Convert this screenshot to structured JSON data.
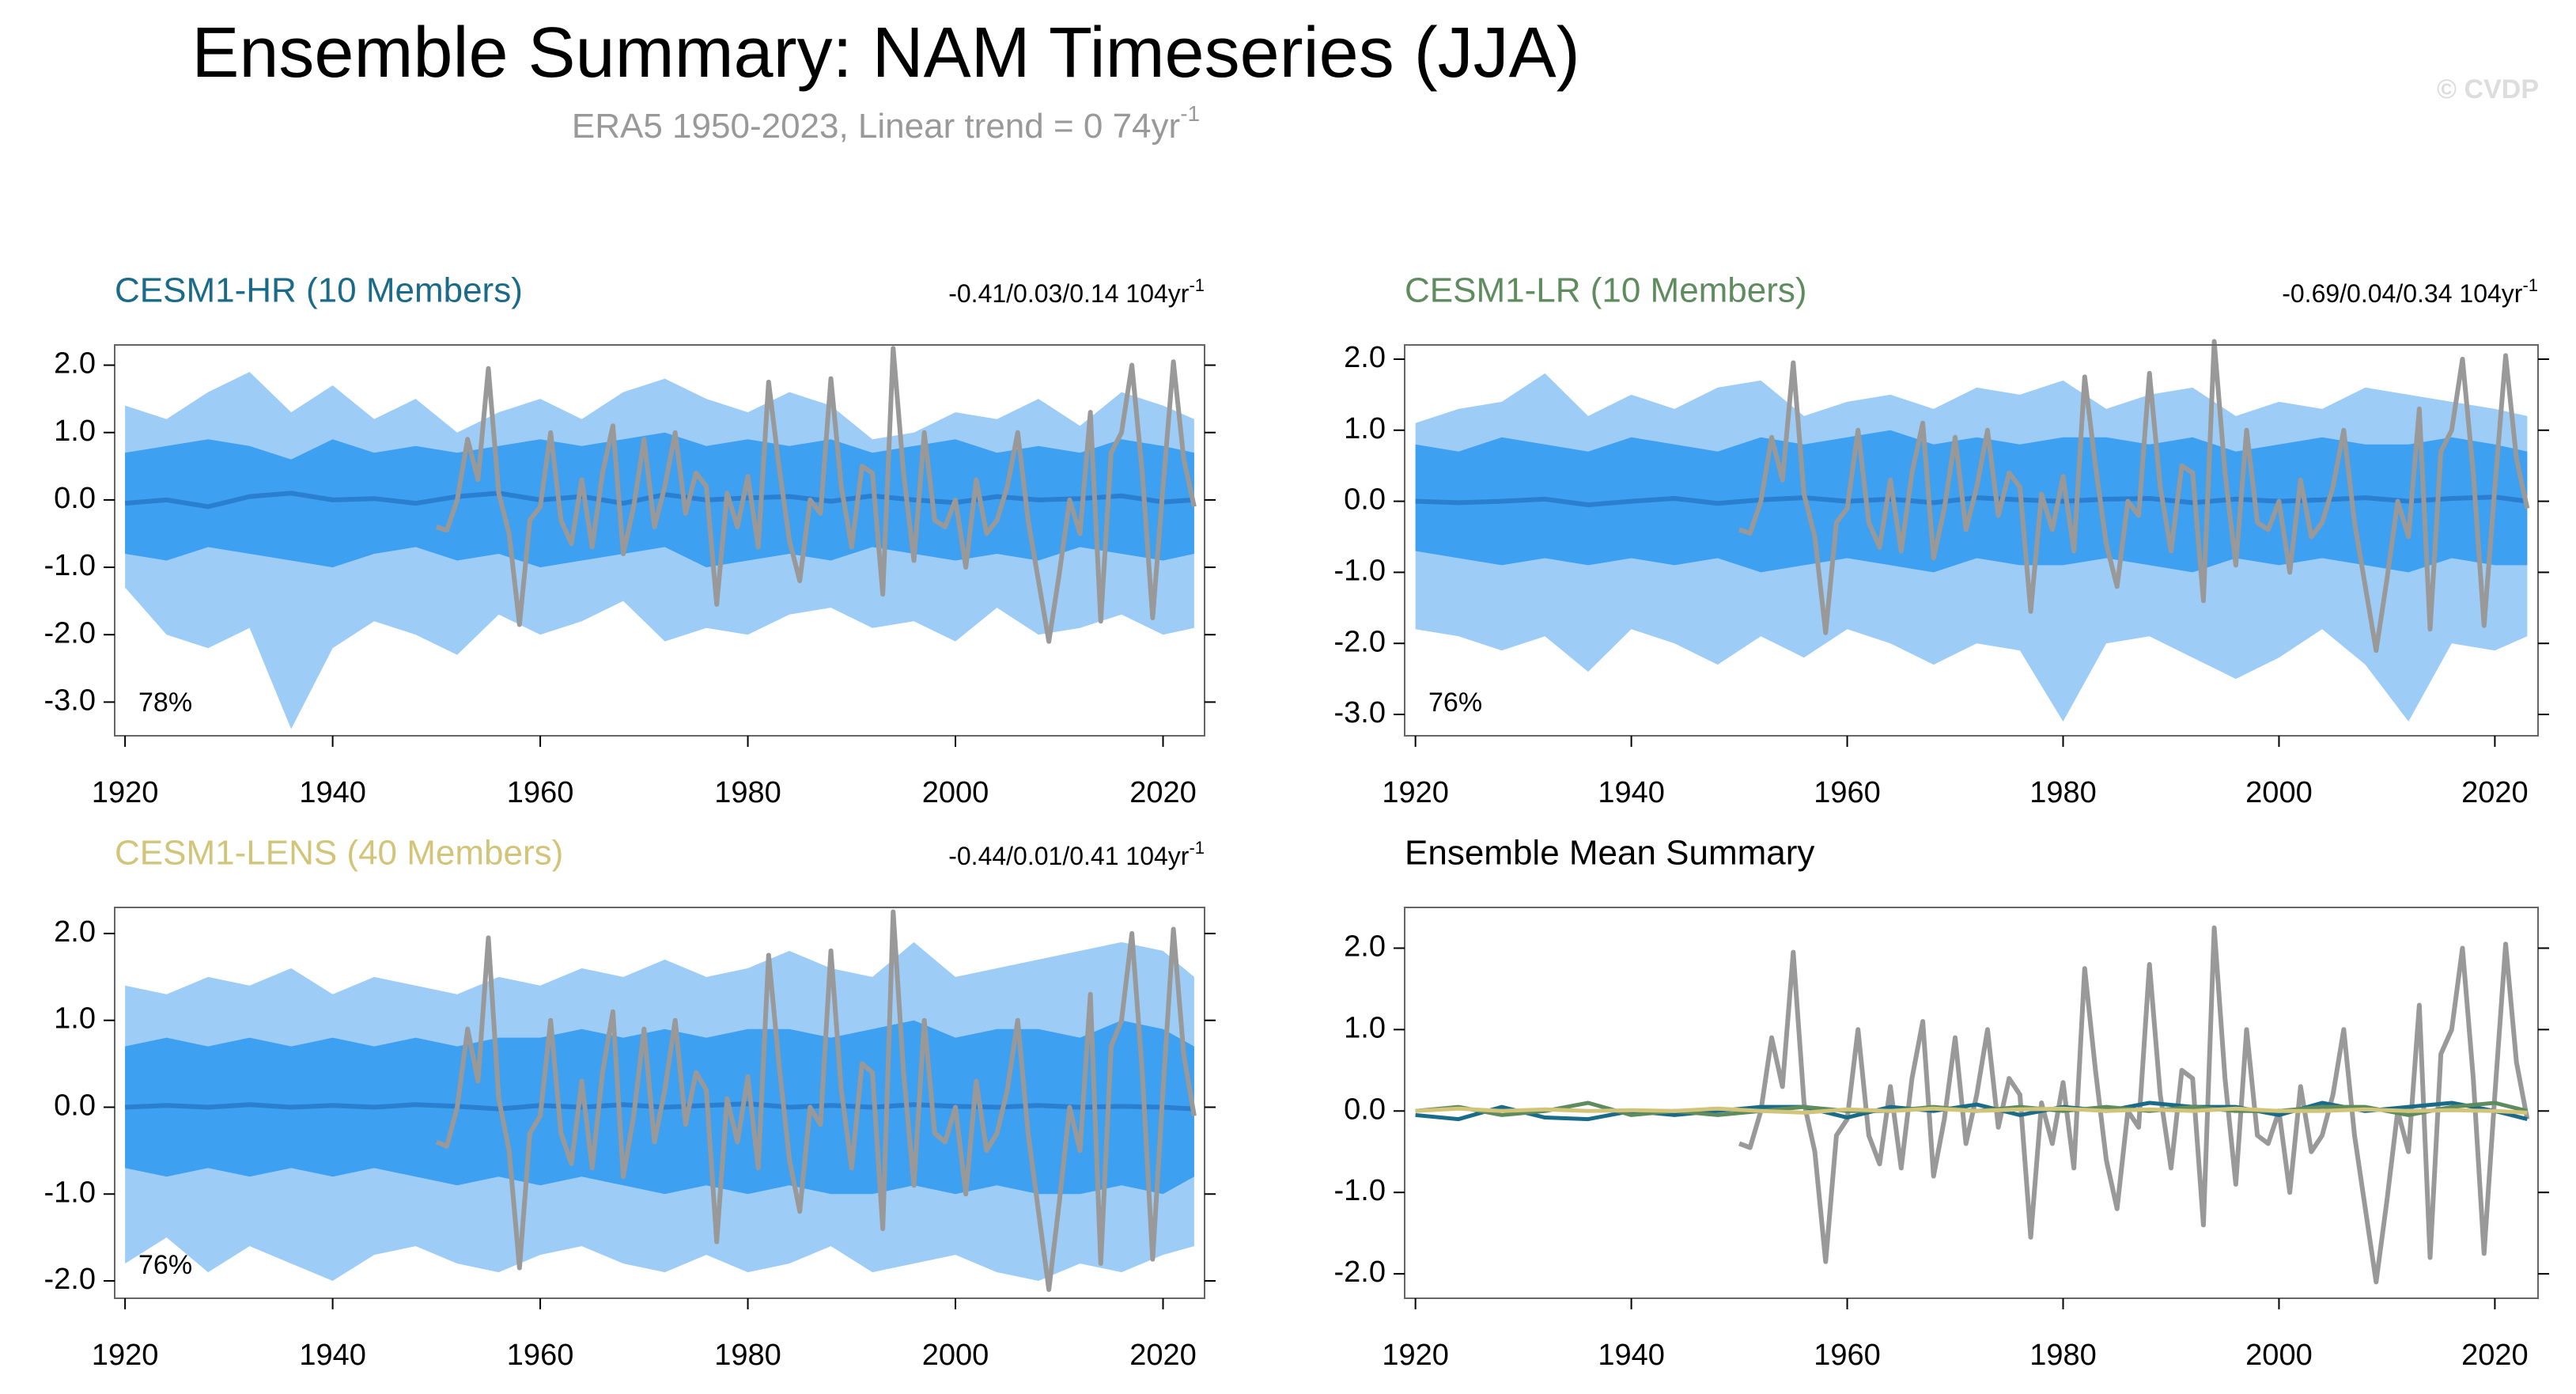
{
  "header": {
    "title": "Ensemble Summary: NAM Timeseries (JJA)",
    "subtitle": "ERA5 1950-2023, Linear trend = 0 74yr",
    "subtitle_sup": "-1",
    "credit": "© CVDP"
  },
  "observed": {
    "color": "#999999",
    "x": [
      1950,
      1951,
      1952,
      1953,
      1954,
      1955,
      1956,
      1957,
      1958,
      1959,
      1960,
      1961,
      1962,
      1963,
      1964,
      1965,
      1966,
      1967,
      1968,
      1969,
      1970,
      1971,
      1972,
      1973,
      1974,
      1975,
      1976,
      1977,
      1978,
      1979,
      1980,
      1981,
      1982,
      1983,
      1984,
      1985,
      1986,
      1987,
      1988,
      1989,
      1990,
      1991,
      1992,
      1993,
      1994,
      1995,
      1996,
      1997,
      1998,
      1999,
      2000,
      2001,
      2002,
      2003,
      2004,
      2005,
      2006,
      2007,
      2008,
      2009,
      2010,
      2011,
      2012,
      2013,
      2014,
      2015,
      2016,
      2017,
      2018,
      2019,
      2020,
      2021,
      2022,
      2023
    ],
    "values": [
      -0.4,
      -0.45,
      0.0,
      0.9,
      0.3,
      1.95,
      0.1,
      -0.5,
      -1.85,
      -0.3,
      -0.1,
      1.0,
      -0.3,
      -0.65,
      0.3,
      -0.7,
      0.4,
      1.1,
      -0.8,
      -0.1,
      0.9,
      -0.4,
      0.2,
      1.0,
      -0.2,
      0.4,
      0.2,
      -1.55,
      0.1,
      -0.4,
      0.35,
      -0.7,
      1.75,
      0.5,
      -0.6,
      -1.2,
      0.0,
      -0.2,
      1.8,
      0.2,
      -0.7,
      0.5,
      0.4,
      -1.4,
      2.25,
      0.4,
      -0.9,
      1.0,
      -0.3,
      -0.4,
      0.0,
      -1.0,
      0.3,
      -0.5,
      -0.3,
      0.2,
      1.0,
      -0.3,
      -1.2,
      -2.1,
      -1.1,
      0.0,
      -0.5,
      1.3,
      -1.8,
      0.7,
      1.0,
      2.0,
      0.4,
      -1.75,
      0.2,
      2.05,
      0.6,
      -0.1
    ]
  },
  "chart_data": [
    {
      "type": "band",
      "title": "CESM1-HR (10 Members)",
      "title_color": "#1a6a8a",
      "stat": "-0.41/0.03/0.14 104yr",
      "stat_sup": "-1",
      "percent": "78%",
      "xlim": [
        1919,
        2024
      ],
      "xticks": [
        1920,
        1940,
        1960,
        1980,
        2000,
        2020
      ],
      "ylim": [
        -3.5,
        2.3
      ],
      "yticks": [
        {
          "value": 2,
          "label": "2.0"
        },
        {
          "value": 1,
          "label": "1.0"
        },
        {
          "value": 0,
          "label": "0.0"
        },
        {
          "value": -1,
          "label": "-1.0"
        },
        {
          "value": -2,
          "label": "-2.0"
        },
        {
          "value": -3,
          "label": "-3.0"
        }
      ],
      "outer_color": "#9dcdf7",
      "inner_color": "#3ea0f0",
      "mean_color": "#2a7fd0",
      "x": [
        1920,
        1924,
        1928,
        1932,
        1936,
        1940,
        1944,
        1948,
        1952,
        1956,
        1960,
        1964,
        1968,
        1972,
        1976,
        1980,
        1984,
        1988,
        1992,
        1996,
        2000,
        2004,
        2008,
        2012,
        2016,
        2020,
        2023
      ],
      "max": [
        1.4,
        1.2,
        1.6,
        1.9,
        1.3,
        1.7,
        1.2,
        1.5,
        1.0,
        1.3,
        1.5,
        1.2,
        1.6,
        1.8,
        1.5,
        1.3,
        1.6,
        1.4,
        0.9,
        1.0,
        1.3,
        1.2,
        1.5,
        1.1,
        1.6,
        1.4,
        1.2
      ],
      "upper": [
        0.7,
        0.8,
        0.9,
        0.8,
        0.6,
        0.9,
        0.7,
        0.8,
        0.7,
        0.8,
        0.9,
        0.8,
        0.9,
        1.0,
        0.8,
        0.9,
        0.8,
        0.9,
        0.7,
        0.8,
        0.9,
        0.7,
        0.8,
        0.7,
        0.9,
        0.8,
        0.7
      ],
      "mean": [
        -0.05,
        0.0,
        -0.1,
        0.05,
        0.1,
        0.0,
        0.02,
        -0.05,
        0.05,
        0.1,
        0.0,
        0.05,
        -0.05,
        0.08,
        0.0,
        0.03,
        0.05,
        -0.02,
        0.06,
        0.0,
        -0.04,
        0.05,
        0.0,
        0.02,
        0.06,
        -0.03,
        0.0
      ],
      "lower": [
        -0.8,
        -0.9,
        -0.7,
        -0.8,
        -0.9,
        -1.0,
        -0.8,
        -0.7,
        -0.9,
        -0.8,
        -1.0,
        -0.9,
        -0.8,
        -0.7,
        -1.0,
        -0.9,
        -0.8,
        -0.9,
        -0.7,
        -0.8,
        -0.9,
        -0.8,
        -0.9,
        -0.7,
        -0.8,
        -0.9,
        -0.8
      ],
      "min": [
        -1.3,
        -2.0,
        -2.2,
        -1.9,
        -3.4,
        -2.2,
        -1.8,
        -2.0,
        -2.3,
        -1.7,
        -2.0,
        -1.8,
        -1.5,
        -2.1,
        -1.9,
        -2.0,
        -1.7,
        -1.6,
        -1.9,
        -1.8,
        -2.1,
        -1.6,
        -2.0,
        -1.9,
        -1.7,
        -2.0,
        -1.9
      ]
    },
    {
      "type": "band",
      "title": "CESM1-LR (10 Members)",
      "title_color": "#5e8c5e",
      "stat": "-0.69/0.04/0.34 104yr",
      "stat_sup": "-1",
      "percent": "76%",
      "xlim": [
        1919,
        2024
      ],
      "xticks": [
        1920,
        1940,
        1960,
        1980,
        2000,
        2020
      ],
      "ylim": [
        -3.3,
        2.2
      ],
      "yticks": [
        {
          "value": 2,
          "label": "2.0"
        },
        {
          "value": 1,
          "label": "1.0"
        },
        {
          "value": 0,
          "label": "0.0"
        },
        {
          "value": -1,
          "label": "-1.0"
        },
        {
          "value": -2,
          "label": "-2.0"
        },
        {
          "value": -3,
          "label": "-3.0"
        }
      ],
      "outer_color": "#9dcdf7",
      "inner_color": "#3ea0f0",
      "mean_color": "#2a7fd0",
      "x": [
        1920,
        1924,
        1928,
        1932,
        1936,
        1940,
        1944,
        1948,
        1952,
        1956,
        1960,
        1964,
        1968,
        1972,
        1976,
        1980,
        1984,
        1988,
        1992,
        1996,
        2000,
        2004,
        2008,
        2012,
        2016,
        2020,
        2023
      ],
      "max": [
        1.1,
        1.3,
        1.4,
        1.8,
        1.2,
        1.5,
        1.3,
        1.6,
        1.7,
        1.2,
        1.4,
        1.5,
        1.3,
        1.6,
        1.5,
        1.7,
        1.3,
        1.5,
        1.6,
        1.2,
        1.4,
        1.3,
        1.6,
        1.5,
        1.4,
        1.3,
        1.2
      ],
      "upper": [
        0.8,
        0.7,
        0.9,
        0.8,
        0.7,
        0.9,
        0.8,
        0.7,
        0.9,
        0.8,
        0.9,
        1.0,
        0.8,
        0.9,
        0.8,
        0.9,
        0.9,
        0.8,
        0.9,
        0.7,
        0.8,
        0.9,
        0.8,
        0.8,
        0.9,
        0.8,
        0.7
      ],
      "mean": [
        0.0,
        -0.02,
        0.0,
        0.03,
        -0.05,
        0.0,
        0.04,
        -0.03,
        0.02,
        0.05,
        0.0,
        0.03,
        -0.02,
        0.05,
        0.02,
        0.0,
        0.03,
        0.04,
        -0.02,
        0.03,
        0.0,
        0.02,
        0.05,
        0.0,
        0.04,
        0.06,
        0.0
      ],
      "lower": [
        -0.7,
        -0.8,
        -0.9,
        -0.8,
        -0.9,
        -0.8,
        -0.9,
        -0.8,
        -1.0,
        -0.9,
        -0.8,
        -0.9,
        -1.0,
        -0.8,
        -0.9,
        -0.9,
        -0.8,
        -0.9,
        -1.0,
        -0.8,
        -0.9,
        -0.8,
        -0.9,
        -1.0,
        -0.8,
        -0.9,
        -0.9
      ],
      "min": [
        -1.8,
        -1.9,
        -2.1,
        -1.9,
        -2.4,
        -1.8,
        -2.0,
        -2.3,
        -1.9,
        -2.2,
        -1.8,
        -2.0,
        -2.3,
        -2.0,
        -2.1,
        -3.1,
        -2.0,
        -1.9,
        -2.2,
        -2.5,
        -2.2,
        -1.8,
        -2.3,
        -3.1,
        -2.0,
        -2.1,
        -1.9
      ]
    },
    {
      "type": "band",
      "title": "CESM1-LENS (40 Members)",
      "title_color": "#d2c57a",
      "stat": "-0.44/0.01/0.41 104yr",
      "stat_sup": "-1",
      "percent": "76%",
      "xlim": [
        1919,
        2024
      ],
      "xticks": [
        1920,
        1940,
        1960,
        1980,
        2000,
        2020
      ],
      "ylim": [
        -2.2,
        2.3
      ],
      "yticks": [
        {
          "value": 2,
          "label": "2.0"
        },
        {
          "value": 1,
          "label": "1.0"
        },
        {
          "value": 0,
          "label": "0.0"
        },
        {
          "value": -1,
          "label": "-1.0"
        },
        {
          "value": -2,
          "label": "-2.0"
        }
      ],
      "outer_color": "#9dcdf7",
      "inner_color": "#3ea0f0",
      "mean_color": "#2a7fd0",
      "x": [
        1920,
        1924,
        1928,
        1932,
        1936,
        1940,
        1944,
        1948,
        1952,
        1956,
        1960,
        1964,
        1968,
        1972,
        1976,
        1980,
        1984,
        1988,
        1992,
        1996,
        2000,
        2004,
        2008,
        2012,
        2016,
        2020,
        2023
      ],
      "max": [
        1.4,
        1.3,
        1.5,
        1.4,
        1.6,
        1.3,
        1.5,
        1.4,
        1.3,
        1.5,
        1.4,
        1.6,
        1.5,
        1.7,
        1.5,
        1.6,
        1.8,
        1.6,
        1.5,
        1.9,
        1.5,
        1.6,
        1.7,
        1.8,
        1.9,
        1.8,
        1.5
      ],
      "upper": [
        0.7,
        0.8,
        0.7,
        0.8,
        0.7,
        0.8,
        0.7,
        0.8,
        0.7,
        0.8,
        0.8,
        0.9,
        0.8,
        0.9,
        0.8,
        0.9,
        0.9,
        0.8,
        0.9,
        1.0,
        0.8,
        0.9,
        0.9,
        0.8,
        1.0,
        0.9,
        0.7
      ],
      "mean": [
        0.0,
        0.02,
        0.0,
        0.03,
        0.0,
        0.02,
        0.0,
        0.03,
        0.01,
        -0.02,
        0.02,
        0.0,
        0.03,
        0.0,
        0.02,
        0.04,
        0.0,
        0.02,
        0.0,
        0.03,
        0.01,
        0.0,
        0.02,
        0.0,
        0.01,
        0.0,
        -0.02
      ],
      "lower": [
        -0.7,
        -0.8,
        -0.7,
        -0.8,
        -0.7,
        -0.8,
        -0.7,
        -0.8,
        -0.9,
        -0.8,
        -0.9,
        -0.8,
        -0.9,
        -1.0,
        -0.9,
        -1.0,
        -0.9,
        -1.0,
        -1.0,
        -0.9,
        -1.0,
        -0.9,
        -1.0,
        -1.0,
        -0.9,
        -1.0,
        -0.8
      ],
      "min": [
        -1.8,
        -1.5,
        -1.9,
        -1.6,
        -1.8,
        -2.0,
        -1.7,
        -1.6,
        -1.8,
        -1.9,
        -1.7,
        -1.6,
        -1.8,
        -1.9,
        -1.7,
        -1.9,
        -1.8,
        -1.6,
        -1.9,
        -1.8,
        -1.7,
        -1.9,
        -2.0,
        -1.8,
        -1.9,
        -1.7,
        -1.6
      ]
    },
    {
      "type": "line",
      "title": "Ensemble Mean Summary",
      "title_color": "#000000",
      "xlim": [
        1919,
        2024
      ],
      "xticks": [
        1920,
        1940,
        1960,
        1980,
        2000,
        2020
      ],
      "ylim": [
        -2.3,
        2.5
      ],
      "yticks": [
        {
          "value": 2,
          "label": "2.0"
        },
        {
          "value": 1,
          "label": "1.0"
        },
        {
          "value": 0,
          "label": "0.0"
        },
        {
          "value": -1,
          "label": "-1.0"
        },
        {
          "value": -2,
          "label": "-2.0"
        }
      ],
      "x": [
        1920,
        1924,
        1928,
        1932,
        1936,
        1940,
        1944,
        1948,
        1952,
        1956,
        1960,
        1964,
        1968,
        1972,
        1976,
        1980,
        1984,
        1988,
        1992,
        1996,
        2000,
        2004,
        2008,
        2012,
        2016,
        2020,
        2023
      ],
      "series": [
        {
          "color": "#1a6a8a",
          "values": [
            -0.05,
            -0.1,
            0.05,
            -0.08,
            -0.1,
            0.0,
            -0.05,
            0.0,
            0.05,
            0.05,
            -0.08,
            0.05,
            0.0,
            0.08,
            -0.05,
            0.05,
            0.0,
            0.1,
            0.05,
            0.05,
            -0.05,
            0.1,
            0.0,
            0.05,
            0.1,
            0.0,
            -0.1
          ]
        },
        {
          "color": "#5e8c5e",
          "values": [
            0.0,
            0.05,
            -0.05,
            0.0,
            0.1,
            -0.05,
            0.0,
            -0.05,
            0.0,
            0.05,
            0.0,
            0.0,
            0.05,
            0.0,
            0.05,
            0.0,
            0.05,
            0.0,
            0.05,
            0.0,
            0.0,
            0.05,
            0.05,
            -0.05,
            0.05,
            0.1,
            0.0
          ]
        },
        {
          "color": "#d2c57a",
          "values": [
            0.0,
            0.03,
            0.0,
            0.02,
            0.0,
            0.01,
            0.0,
            0.03,
            0.0,
            -0.02,
            0.02,
            0.0,
            0.03,
            0.0,
            0.02,
            0.03,
            0.0,
            0.02,
            0.0,
            0.03,
            0.0,
            0.0,
            0.02,
            0.0,
            0.01,
            0.0,
            -0.02
          ]
        }
      ]
    }
  ]
}
